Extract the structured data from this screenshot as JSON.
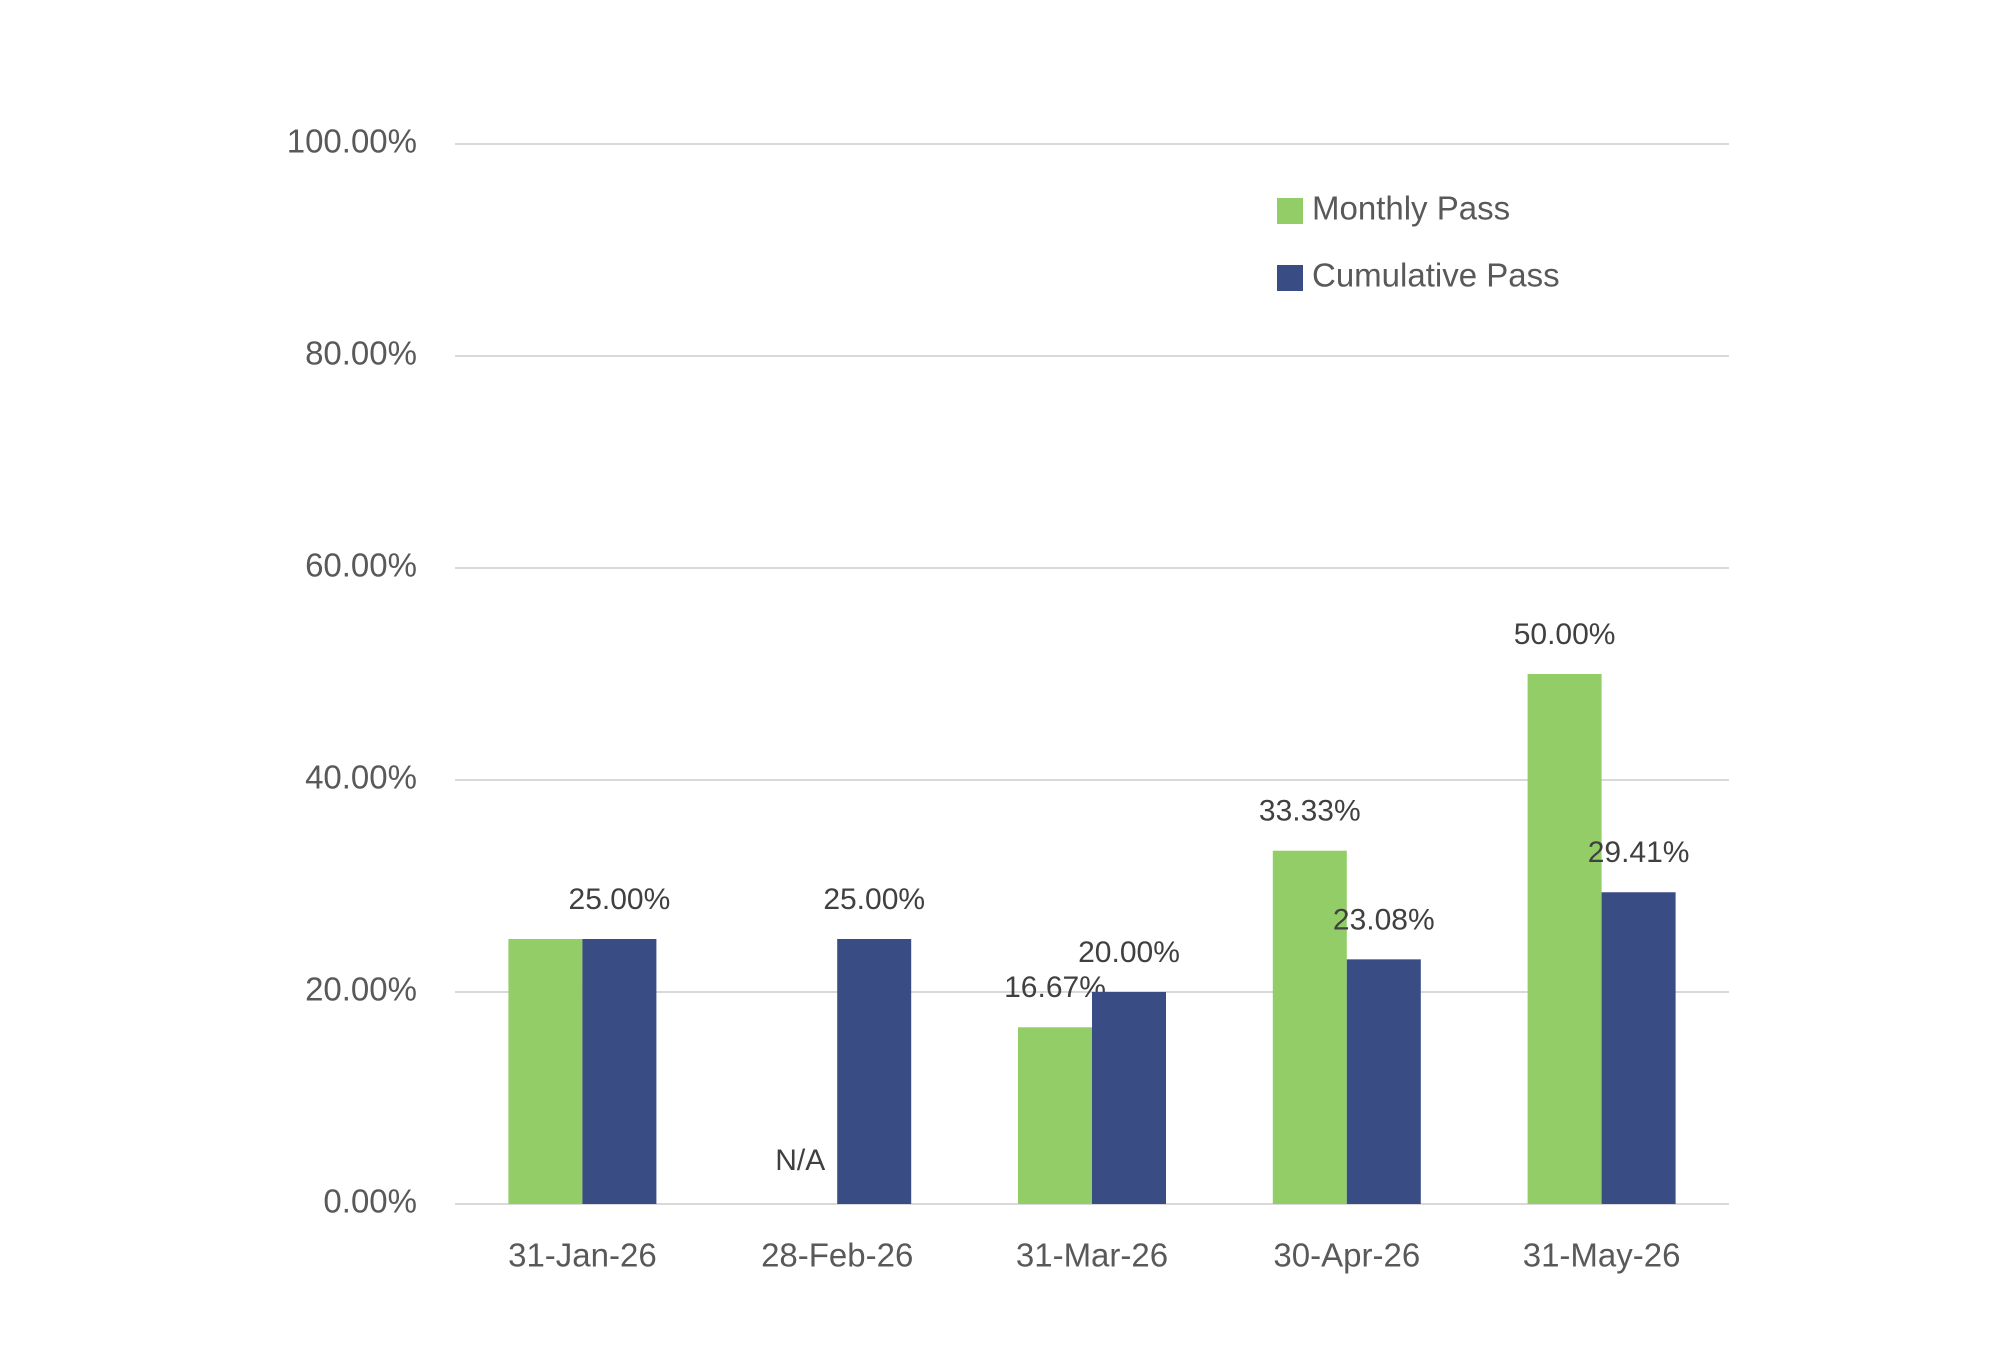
{
  "chart_data": {
    "type": "bar",
    "categories": [
      "31-Jan-26",
      "28-Feb-26",
      "31-Mar-26",
      "30-Apr-26",
      "31-May-26"
    ],
    "series": [
      {
        "name": "Monthly Pass",
        "color": "#92cd67",
        "values": [
          25,
          null,
          16.67,
          33.33,
          50
        ],
        "value_labels": [
          null,
          "N/A",
          "16.67%",
          "33.33%",
          "50.00%"
        ]
      },
      {
        "name": "Cumulative Pass",
        "color": "#394c84",
        "values": [
          25,
          25,
          20,
          23.08,
          29.41
        ],
        "value_labels": [
          "25.00%",
          "25.00%",
          "20.00%",
          "23.08%",
          "29.41%"
        ]
      }
    ],
    "ylim": [
      0,
      100
    ],
    "yticks": [
      {
        "value": 0,
        "label": "0.00%"
      },
      {
        "value": 20,
        "label": "20.00%"
      },
      {
        "value": 40,
        "label": "40.00%"
      },
      {
        "value": 60,
        "label": "60.00%"
      },
      {
        "value": 80,
        "label": "80.00%"
      },
      {
        "value": 100,
        "label": "100.00%"
      }
    ],
    "grid": true,
    "legend": "upper right"
  }
}
